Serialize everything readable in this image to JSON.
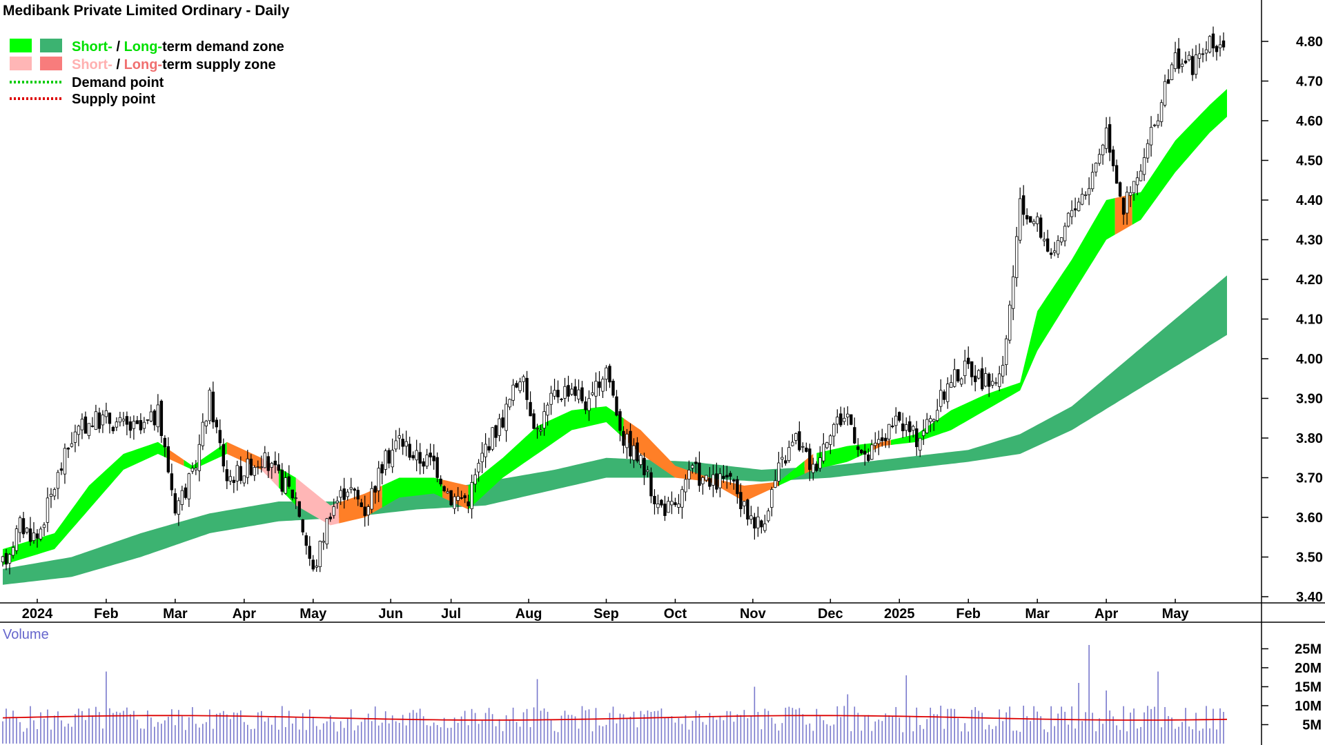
{
  "title": "Medibank Private Limited Ordinary - Daily",
  "legend": {
    "demand_zone": {
      "short": "Short-",
      "sep": " / ",
      "long": "Long-",
      "rest": "term demand zone"
    },
    "supply_zone": {
      "short": "Short-",
      "sep": " / ",
      "long": "Long-",
      "rest": "term supply zone"
    },
    "demand_point": "Demand point",
    "supply_point": "Supply point"
  },
  "colors": {
    "short_demand": "#00ff00",
    "long_demand": "#3cb371",
    "short_supply": "#ffb6b6",
    "long_supply": "#f87c7c",
    "overlap_supply": "#ff7f27",
    "demand_point": "#00cc00",
    "supply_point": "#dd0000",
    "volume_bar": "#7777cc",
    "volume_ma": "#dd0000",
    "volume_label": "#6666cc"
  },
  "volume_label": "Volume",
  "chart_data": {
    "type": "candlestick",
    "price_axis": {
      "ticks": [
        "3.40",
        "3.50",
        "3.60",
        "3.70",
        "3.80",
        "3.90",
        "4.00",
        "4.10",
        "4.20",
        "4.30",
        "4.40",
        "4.50",
        "4.60",
        "4.70",
        "4.80"
      ],
      "ylim": [
        3.37,
        4.85
      ]
    },
    "volume_axis": {
      "ticks": [
        "5M",
        "10M",
        "15M",
        "20M",
        "25M"
      ],
      "ylim": [
        0,
        28
      ]
    },
    "x_labels": [
      {
        "label": "2024",
        "week": 2.0
      },
      {
        "label": "Feb",
        "week": 6.0
      },
      {
        "label": "Mar",
        "week": 10.0
      },
      {
        "label": "Apr",
        "week": 14.0
      },
      {
        "label": "May",
        "week": 18.0
      },
      {
        "label": "Jun",
        "week": 22.5
      },
      {
        "label": "Jul",
        "week": 26.0
      },
      {
        "label": "Aug",
        "week": 30.5
      },
      {
        "label": "Sep",
        "week": 35.0
      },
      {
        "label": "Oct",
        "week": 39.0
      },
      {
        "label": "Nov",
        "week": 43.5
      },
      {
        "label": "Dec",
        "week": 48.0
      },
      {
        "label": "2025",
        "week": 52.0
      },
      {
        "label": "Feb",
        "week": 56.0
      },
      {
        "label": "Mar",
        "week": 60.0
      },
      {
        "label": "Apr",
        "week": 64.0
      },
      {
        "label": "May",
        "week": 68.0
      }
    ],
    "total_weeks": 71,
    "price_path": [
      [
        0,
        3.48
      ],
      [
        1,
        3.58
      ],
      [
        2,
        3.55
      ],
      [
        3,
        3.68
      ],
      [
        4,
        3.8
      ],
      [
        5,
        3.84
      ],
      [
        6,
        3.85
      ],
      [
        7,
        3.83
      ],
      [
        8,
        3.82
      ],
      [
        9,
        3.86
      ],
      [
        10,
        3.63
      ],
      [
        11,
        3.7
      ],
      [
        12,
        3.9
      ],
      [
        13,
        3.7
      ],
      [
        14,
        3.72
      ],
      [
        15,
        3.75
      ],
      [
        16,
        3.7
      ],
      [
        17,
        3.65
      ],
      [
        18,
        3.46
      ],
      [
        19,
        3.62
      ],
      [
        20,
        3.68
      ],
      [
        21,
        3.62
      ],
      [
        22,
        3.73
      ],
      [
        23,
        3.8
      ],
      [
        24,
        3.75
      ],
      [
        25,
        3.74
      ],
      [
        26,
        3.65
      ],
      [
        27,
        3.65
      ],
      [
        28,
        3.78
      ],
      [
        29,
        3.85
      ],
      [
        30,
        3.96
      ],
      [
        31,
        3.82
      ],
      [
        32,
        3.91
      ],
      [
        33,
        3.93
      ],
      [
        34,
        3.88
      ],
      [
        35,
        3.98
      ],
      [
        36,
        3.8
      ],
      [
        37,
        3.74
      ],
      [
        38,
        3.63
      ],
      [
        39,
        3.62
      ],
      [
        40,
        3.72
      ],
      [
        41,
        3.68
      ],
      [
        42,
        3.7
      ],
      [
        43,
        3.62
      ],
      [
        44,
        3.58
      ],
      [
        45,
        3.72
      ],
      [
        46,
        3.8
      ],
      [
        47,
        3.72
      ],
      [
        48,
        3.83
      ],
      [
        49,
        3.86
      ],
      [
        50,
        3.74
      ],
      [
        51,
        3.8
      ],
      [
        52,
        3.84
      ],
      [
        53,
        3.8
      ],
      [
        54,
        3.86
      ],
      [
        55,
        3.95
      ],
      [
        56,
        3.98
      ],
      [
        57,
        3.94
      ],
      [
        58,
        3.96
      ],
      [
        59,
        4.38
      ],
      [
        60,
        4.34
      ],
      [
        61,
        4.25
      ],
      [
        62,
        4.38
      ],
      [
        63,
        4.44
      ],
      [
        64,
        4.58
      ],
      [
        65,
        4.38
      ],
      [
        66,
        4.47
      ],
      [
        67,
        4.62
      ],
      [
        68,
        4.76
      ],
      [
        69,
        4.74
      ],
      [
        70,
        4.79
      ],
      [
        71,
        4.8
      ]
    ],
    "long_zone_top": [
      [
        0,
        3.47
      ],
      [
        4,
        3.5
      ],
      [
        8,
        3.56
      ],
      [
        12,
        3.61
      ],
      [
        16,
        3.64
      ],
      [
        20,
        3.64
      ],
      [
        24,
        3.66
      ],
      [
        28,
        3.69
      ],
      [
        32,
        3.72
      ],
      [
        35,
        3.75
      ],
      [
        40,
        3.74
      ],
      [
        44,
        3.72
      ],
      [
        48,
        3.73
      ],
      [
        52,
        3.75
      ],
      [
        56,
        3.77
      ],
      [
        59,
        3.81
      ],
      [
        62,
        3.88
      ],
      [
        65,
        3.99
      ],
      [
        68,
        4.1
      ],
      [
        71,
        4.21
      ]
    ],
    "long_zone_bottom": [
      [
        0,
        3.43
      ],
      [
        4,
        3.45
      ],
      [
        8,
        3.5
      ],
      [
        12,
        3.56
      ],
      [
        16,
        3.59
      ],
      [
        20,
        3.6
      ],
      [
        24,
        3.62
      ],
      [
        28,
        3.63
      ],
      [
        32,
        3.67
      ],
      [
        35,
        3.7
      ],
      [
        40,
        3.7
      ],
      [
        44,
        3.69
      ],
      [
        48,
        3.7
      ],
      [
        52,
        3.72
      ],
      [
        56,
        3.74
      ],
      [
        59,
        3.76
      ],
      [
        62,
        3.82
      ],
      [
        65,
        3.9
      ],
      [
        68,
        3.98
      ],
      [
        71,
        4.06
      ]
    ],
    "short_zone_top": [
      [
        0,
        3.52
      ],
      [
        3,
        3.56
      ],
      [
        5,
        3.68
      ],
      [
        7,
        3.76
      ],
      [
        9,
        3.79
      ],
      [
        11,
        3.73
      ],
      [
        13,
        3.79
      ],
      [
        15,
        3.75
      ],
      [
        17,
        3.7
      ],
      [
        19,
        3.63
      ],
      [
        21,
        3.66
      ],
      [
        23,
        3.7
      ],
      [
        25,
        3.7
      ],
      [
        27,
        3.68
      ],
      [
        29,
        3.75
      ],
      [
        31,
        3.83
      ],
      [
        33,
        3.87
      ],
      [
        35,
        3.88
      ],
      [
        37,
        3.82
      ],
      [
        39,
        3.73
      ],
      [
        41,
        3.7
      ],
      [
        43,
        3.68
      ],
      [
        45,
        3.69
      ],
      [
        47,
        3.76
      ],
      [
        49,
        3.78
      ],
      [
        51,
        3.79
      ],
      [
        53,
        3.81
      ],
      [
        55,
        3.87
      ],
      [
        57,
        3.91
      ],
      [
        59,
        3.94
      ],
      [
        60,
        4.12
      ],
      [
        62,
        4.25
      ],
      [
        64,
        4.4
      ],
      [
        66,
        4.42
      ],
      [
        68,
        4.55
      ],
      [
        70,
        4.64
      ],
      [
        71,
        4.68
      ]
    ],
    "short_zone_bottom": [
      [
        0,
        3.48
      ],
      [
        3,
        3.52
      ],
      [
        5,
        3.62
      ],
      [
        7,
        3.72
      ],
      [
        9,
        3.76
      ],
      [
        11,
        3.72
      ],
      [
        13,
        3.76
      ],
      [
        15,
        3.72
      ],
      [
        17,
        3.63
      ],
      [
        19,
        3.58
      ],
      [
        21,
        3.6
      ],
      [
        23,
        3.65
      ],
      [
        25,
        3.66
      ],
      [
        27,
        3.62
      ],
      [
        29,
        3.7
      ],
      [
        31,
        3.76
      ],
      [
        33,
        3.82
      ],
      [
        35,
        3.84
      ],
      [
        37,
        3.76
      ],
      [
        39,
        3.7
      ],
      [
        41,
        3.69
      ],
      [
        43,
        3.64
      ],
      [
        45,
        3.68
      ],
      [
        47,
        3.72
      ],
      [
        49,
        3.74
      ],
      [
        51,
        3.78
      ],
      [
        53,
        3.79
      ],
      [
        55,
        3.82
      ],
      [
        57,
        3.87
      ],
      [
        59,
        3.92
      ],
      [
        60,
        4.02
      ],
      [
        62,
        4.16
      ],
      [
        64,
        4.3
      ],
      [
        66,
        4.35
      ],
      [
        68,
        4.47
      ],
      [
        70,
        4.57
      ],
      [
        71,
        4.61
      ]
    ],
    "volume_ma": 6.8
  }
}
